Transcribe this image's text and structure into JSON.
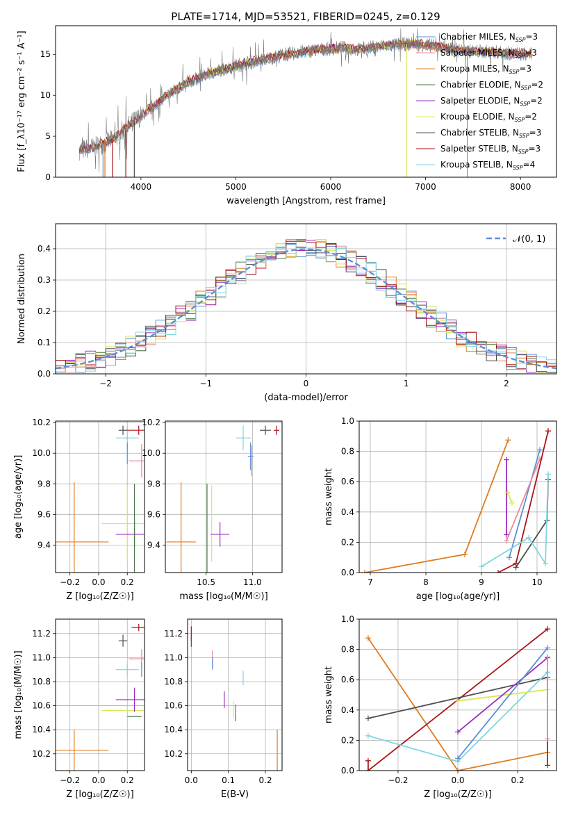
{
  "figure": {
    "title": "PLATE=1714, MJD=53521, FIBERID=0245, z=0.129"
  },
  "colors": {
    "chabrier_miles": "#5b8fd6",
    "salpeter_miles": "#e88a9a",
    "kroupa_miles": "#e07b20",
    "chabrier_elodie": "#4f7a4a",
    "salpeter_elodie": "#9b2dbd",
    "kroupa_elodie": "#d7e85a",
    "chabrier_stelib": "#4d4d4d",
    "salpeter_stelib": "#aa1418",
    "kroupa_stelib": "#7fd6e0",
    "grid": "#b0b0b0",
    "normal": "#5b8fd6"
  },
  "chart_data": [
    {
      "id": "spectrum",
      "type": "line",
      "xlabel": "wavelength [Angstrom, rest frame]",
      "ylabel": "Flux [f_λ10⁻¹⁷ erg cm⁻² s⁻¹ A⁻¹]",
      "xlim": [
        3100,
        8380
      ],
      "ylim": [
        0,
        18.5
      ],
      "xticks": [
        4000,
        5000,
        6000,
        7000,
        8000
      ],
      "yticks": [
        0,
        5,
        10,
        15
      ],
      "grid": false,
      "legend_position": "upper-right",
      "legend": [
        {
          "label": "Chabrier MILES, N",
          "sub": "SSP",
          "suffix": "=3",
          "color_key": "chabrier_miles"
        },
        {
          "label": "Salpeter MILES, N",
          "sub": "SSP",
          "suffix": "=3",
          "color_key": "salpeter_miles"
        },
        {
          "label": "Kroupa MILES, N",
          "sub": "SSP",
          "suffix": "=3",
          "color_key": "kroupa_miles"
        },
        {
          "label": "Chabrier ELODIE, N",
          "sub": "SSP",
          "suffix": "=2",
          "color_key": "chabrier_elodie"
        },
        {
          "label": "Salpeter ELODIE, N",
          "sub": "SSP",
          "suffix": "=2",
          "color_key": "salpeter_elodie"
        },
        {
          "label": "Kroupa ELODIE, N",
          "sub": "SSP",
          "suffix": "=2",
          "color_key": "kroupa_elodie"
        },
        {
          "label": "Chabrier STELIB, N",
          "sub": "SSP",
          "suffix": "=3",
          "color_key": "chabrier_stelib"
        },
        {
          "label": "Salpeter STELIB, N",
          "sub": "SSP",
          "suffix": "=3",
          "color_key": "salpeter_stelib"
        },
        {
          "label": "Kroupa STELIB, N",
          "sub": "SSP",
          "suffix": "=4",
          "color_key": "kroupa_stelib"
        }
      ],
      "continuum": {
        "x": [
          3350,
          3500,
          3700,
          3900,
          4100,
          4300,
          4500,
          4700,
          4900,
          5100,
          5300,
          5500,
          5700,
          5900,
          6100,
          6300,
          6500,
          6700,
          6900,
          7100,
          7300,
          7500,
          7700,
          7900,
          8100
        ],
        "y": [
          3.3,
          3.6,
          4.6,
          6.6,
          8.4,
          10.2,
          11.6,
          12.6,
          13.3,
          13.9,
          14.4,
          14.9,
          15.3,
          15.6,
          15.8,
          15.6,
          16.0,
          16.2,
          16.3,
          16.0,
          15.6,
          15.4,
          15.3,
          15.1,
          15.0
        ]
      },
      "vertical_drops": [
        {
          "x": 3600,
          "color_key": "chabrier_miles"
        },
        {
          "x": 3620,
          "color_key": "kroupa_miles"
        },
        {
          "x": 3700,
          "color_key": "salpeter_stelib"
        },
        {
          "x": 3840,
          "color_key": "salpeter_stelib"
        },
        {
          "x": 3930,
          "color_key": "chabrier_stelib"
        },
        {
          "x": 6800,
          "color_key": "kroupa_elodie"
        },
        {
          "x": 7440,
          "color_key": "kroupa_miles"
        }
      ]
    },
    {
      "id": "residual-hist",
      "type": "step",
      "xlabel": "(data-model)/error",
      "ylabel": "Normed distribution",
      "xlim": [
        -2.5,
        2.5
      ],
      "ylim": [
        0,
        0.48
      ],
      "xticks": [
        -2,
        -1,
        0,
        1,
        2
      ],
      "yticks": [
        0.0,
        0.1,
        0.2,
        0.3,
        0.4
      ],
      "grid": true,
      "legend_position": "upper-right",
      "normal_label": "𝒩(0, 1)",
      "bin_width": 0.1
    },
    {
      "id": "age-vs-Z",
      "type": "errorbar",
      "xlabel": "Z [log₁₀(Z/Z☉)]",
      "ylabel": "age  [log₁₀(age/yr)]",
      "xlim": [
        -0.3,
        0.32
      ],
      "ylim": [
        9.22,
        10.21
      ],
      "xticks": [
        -0.2,
        0.0,
        0.2
      ],
      "yticks": [
        9.4,
        9.6,
        9.8,
        10.0,
        10.2
      ],
      "grid": true,
      "points": [
        {
          "color_key": "kroupa_miles",
          "x": -0.17,
          "xerr": 0.24,
          "y": 9.42,
          "yerr": 0.39
        },
        {
          "color_key": "kroupa_elodie",
          "x": 0.2,
          "xerr": 0.18,
          "y": 9.54,
          "yerr": 0.25
        },
        {
          "color_key": "salpeter_elodie",
          "x": 0.25,
          "xerr": 0.13,
          "y": 9.47,
          "yerr": 0.09
        },
        {
          "color_key": "chabrier_elodie",
          "x": 0.25,
          "xerr": 0.0,
          "y": 9.5,
          "yerr": 0.3
        },
        {
          "color_key": "kroupa_stelib",
          "x": 0.2,
          "xerr": 0.08,
          "y": 10.1,
          "yerr": 0.08
        },
        {
          "color_key": "chabrier_stelib",
          "x": 0.17,
          "xerr": 0.03,
          "y": 10.15,
          "yerr": 0.03
        },
        {
          "color_key": "salpeter_stelib",
          "x": 0.28,
          "xerr": 0.08,
          "y": 10.15,
          "yerr": 0.03
        },
        {
          "color_key": "salpeter_miles",
          "x": 0.3,
          "xerr": 0.09,
          "y": 9.95,
          "yerr": 0.11
        },
        {
          "color_key": "chabrier_miles",
          "x": 0.2,
          "xerr": 0.0,
          "y": 10.0,
          "yerr": 0.07
        }
      ]
    },
    {
      "id": "age-vs-mass",
      "type": "errorbar",
      "xlabel": "mass [log₁₀(M/M☉)]",
      "ylabel": "",
      "xlim": [
        10.06,
        11.32
      ],
      "ylim": [
        9.22,
        10.21
      ],
      "xticks": [
        10.5,
        11.0
      ],
      "yticks": [
        9.4,
        9.6,
        9.8,
        10.0,
        10.2
      ],
      "grid": true,
      "points": [
        {
          "color_key": "kroupa_miles",
          "x": 10.23,
          "xerr": 0.16,
          "y": 9.42,
          "yerr": 0.39
        },
        {
          "color_key": "chabrier_elodie",
          "x": 10.51,
          "xerr": 0.0,
          "y": 9.5,
          "yerr": 0.3
        },
        {
          "color_key": "kroupa_elodie",
          "x": 10.56,
          "xerr": 0.0,
          "y": 9.54,
          "yerr": 0.25
        },
        {
          "color_key": "salpeter_elodie",
          "x": 10.65,
          "xerr": 0.1,
          "y": 9.47,
          "yerr": 0.08
        },
        {
          "color_key": "kroupa_stelib",
          "x": 10.9,
          "xerr": 0.08,
          "y": 10.1,
          "yerr": 0.08
        },
        {
          "color_key": "chabrier_miles",
          "x": 10.98,
          "xerr": 0.03,
          "y": 9.98,
          "yerr": 0.09
        },
        {
          "color_key": "salpeter_miles",
          "x": 10.99,
          "xerr": 0.0,
          "y": 9.95,
          "yerr": 0.1
        },
        {
          "color_key": "chabrier_stelib",
          "x": 11.14,
          "xerr": 0.06,
          "y": 10.15,
          "yerr": 0.03
        },
        {
          "color_key": "salpeter_stelib",
          "x": 11.26,
          "xerr": 0.03,
          "y": 10.15,
          "yerr": 0.03
        }
      ]
    },
    {
      "id": "mass-weight-vs-age",
      "type": "line",
      "xlabel": "age  [log₁₀(age/yr)]",
      "ylabel": "mass weight",
      "xlim": [
        6.8,
        10.35
      ],
      "ylim": [
        0,
        1.0
      ],
      "xticks": [
        7,
        8,
        9,
        10
      ],
      "yticks": [
        0.0,
        0.2,
        0.4,
        0.6,
        0.8,
        1.0
      ],
      "grid": true,
      "series": [
        {
          "color_key": "kroupa_miles",
          "x": [
            6.9,
            8.7,
            9.48
          ],
          "y": [
            0.0,
            0.12,
            0.875
          ]
        },
        {
          "color_key": "chabrier_miles",
          "x": [
            9.5,
            10.05
          ],
          "y": [
            0.1,
            0.81
          ]
        },
        {
          "color_key": "salpeter_miles",
          "x": [
            9.45,
            10.05
          ],
          "y": [
            0.21,
            0.75
          ]
        },
        {
          "color_key": "salpeter_elodie",
          "x": [
            9.45,
            9.45
          ],
          "y": [
            0.25,
            0.745
          ]
        },
        {
          "color_key": "kroupa_elodie",
          "x": [
            9.47,
            9.55
          ],
          "y": [
            0.53,
            0.46
          ]
        },
        {
          "color_key": "chabrier_stelib",
          "x": [
            9.62,
            10.18,
            10.2
          ],
          "y": [
            0.035,
            0.345,
            0.615
          ]
        },
        {
          "color_key": "salpeter_stelib",
          "x": [
            9.3,
            9.62,
            10.2
          ],
          "y": [
            0.0,
            0.06,
            0.935
          ]
        },
        {
          "color_key": "kroupa_stelib",
          "x": [
            9.0,
            9.85,
            10.15,
            10.2
          ],
          "y": [
            0.04,
            0.23,
            0.06,
            0.65
          ]
        }
      ]
    },
    {
      "id": "mass-vs-Z",
      "type": "errorbar",
      "xlabel": "Z [log₁₀(Z/Z☉)]",
      "ylabel": "mass [log₁₀(M/M☉)]",
      "xlim": [
        -0.3,
        0.32
      ],
      "ylim": [
        10.06,
        11.32
      ],
      "xticks": [
        -0.2,
        0.0,
        0.2
      ],
      "yticks": [
        10.2,
        10.4,
        10.6,
        10.8,
        11.0,
        11.2
      ],
      "grid": true,
      "points": [
        {
          "color_key": "kroupa_miles",
          "x": -0.17,
          "xerr": 0.24,
          "y": 10.23,
          "yerr": 0.17
        },
        {
          "color_key": "kroupa_elodie",
          "x": 0.2,
          "xerr": 0.18,
          "y": 10.56,
          "yerr": 0.0
        },
        {
          "color_key": "salpeter_elodie",
          "x": 0.25,
          "xerr": 0.13,
          "y": 10.65,
          "yerr": 0.1
        },
        {
          "color_key": "chabrier_elodie",
          "x": 0.25,
          "xerr": 0.05,
          "y": 10.51,
          "yerr": 0.0
        },
        {
          "color_key": "kroupa_stelib",
          "x": 0.2,
          "xerr": 0.08,
          "y": 10.9,
          "yerr": 0.05
        },
        {
          "color_key": "chabrier_stelib",
          "x": 0.17,
          "xerr": 0.03,
          "y": 11.14,
          "yerr": 0.05
        },
        {
          "color_key": "salpeter_stelib",
          "x": 0.28,
          "xerr": 0.05,
          "y": 11.25,
          "yerr": 0.03
        },
        {
          "color_key": "salpeter_miles",
          "x": 0.3,
          "xerr": 0.09,
          "y": 10.99,
          "yerr": 0.08
        },
        {
          "color_key": "chabrier_miles",
          "x": 0.3,
          "xerr": 0.0,
          "y": 10.9,
          "yerr": 0.06
        }
      ]
    },
    {
      "id": "mass-vs-ebv",
      "type": "errorbar",
      "xlabel": "E(B-V)",
      "ylabel": "",
      "xlim": [
        -0.01,
        0.245
      ],
      "ylim": [
        10.06,
        11.32
      ],
      "xticks": [
        0.0,
        0.1,
        0.2
      ],
      "yticks": [
        10.2,
        10.4,
        10.6,
        10.8,
        11.0,
        11.2
      ],
      "grid": true,
      "points": [
        {
          "color_key": "kroupa_miles",
          "x": 0.232,
          "xerr": 0.0,
          "y": 10.23,
          "yerr": 0.17
        },
        {
          "color_key": "salpeter_stelib",
          "x": 0.0,
          "xerr": 0.0,
          "y": 11.2,
          "yerr": 0.06
        },
        {
          "color_key": "chabrier_stelib",
          "x": 0.0,
          "xerr": 0.0,
          "y": 11.14,
          "yerr": 0.05
        },
        {
          "color_key": "salpeter_miles",
          "x": 0.057,
          "xerr": 0.0,
          "y": 10.99,
          "yerr": 0.07
        },
        {
          "color_key": "chabrier_miles",
          "x": 0.057,
          "xerr": 0.0,
          "y": 10.95,
          "yerr": 0.05
        },
        {
          "color_key": "salpeter_elodie",
          "x": 0.089,
          "xerr": 0.0,
          "y": 10.65,
          "yerr": 0.07
        },
        {
          "color_key": "kroupa_elodie",
          "x": 0.114,
          "xerr": 0.0,
          "y": 10.57,
          "yerr": 0.07
        },
        {
          "color_key": "chabrier_elodie",
          "x": 0.12,
          "xerr": 0.0,
          "y": 10.54,
          "yerr": 0.07
        },
        {
          "color_key": "kroupa_stelib",
          "x": 0.14,
          "xerr": 0.0,
          "y": 10.83,
          "yerr": 0.06
        }
      ]
    },
    {
      "id": "mass-weight-vs-Z",
      "type": "line",
      "xlabel": "Z [log₁₀(Z/Z☉)]",
      "ylabel": "mass weight",
      "xlim": [
        -0.33,
        0.33
      ],
      "ylim": [
        0,
        1.0
      ],
      "xticks": [
        -0.2,
        0.0,
        0.2
      ],
      "yticks": [
        0.0,
        0.2,
        0.4,
        0.6,
        0.8,
        1.0
      ],
      "grid": true,
      "series": [
        {
          "color_key": "kroupa_miles",
          "x": [
            -0.3,
            0.0,
            0.3
          ],
          "y": [
            0.875,
            0.0,
            0.12
          ]
        },
        {
          "color_key": "salpeter_stelib",
          "x": [
            -0.3,
            -0.3,
            0.3
          ],
          "y": [
            0.065,
            0.0,
            0.935
          ]
        },
        {
          "color_key": "chabrier_stelib",
          "x": [
            -0.3,
            0.3,
            0.3
          ],
          "y": [
            0.345,
            0.615,
            0.035
          ]
        },
        {
          "color_key": "kroupa_stelib",
          "x": [
            -0.3,
            0.0,
            0.3
          ],
          "y": [
            0.23,
            0.06,
            0.65
          ]
        },
        {
          "color_key": "kroupa_elodie",
          "x": [
            0.0,
            0.3
          ],
          "y": [
            0.46,
            0.535
          ]
        },
        {
          "color_key": "salpeter_elodie",
          "x": [
            0.0,
            0.3
          ],
          "y": [
            0.255,
            0.745
          ]
        },
        {
          "color_key": "chabrier_miles",
          "x": [
            0.0,
            0.3
          ],
          "y": [
            0.08,
            0.81
          ]
        },
        {
          "color_key": "salpeter_miles",
          "x": [
            0.3,
            0.3
          ],
          "y": [
            0.21,
            0.75
          ]
        }
      ]
    }
  ]
}
